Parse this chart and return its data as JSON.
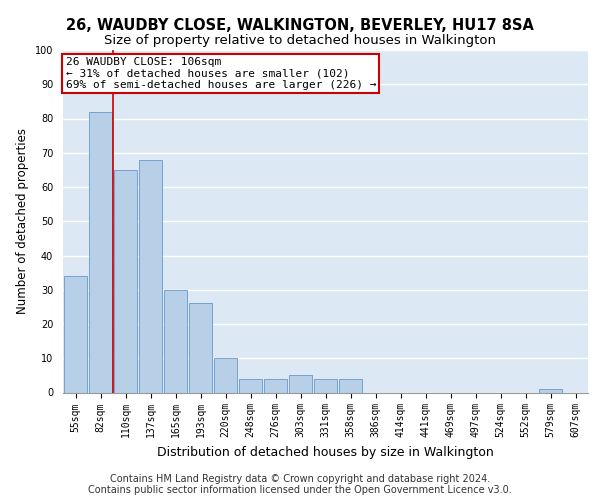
{
  "title1": "26, WAUDBY CLOSE, WALKINGTON, BEVERLEY, HU17 8SA",
  "title2": "Size of property relative to detached houses in Walkington",
  "xlabel": "Distribution of detached houses by size in Walkington",
  "ylabel": "Number of detached properties",
  "categories": [
    "55sqm",
    "82sqm",
    "110sqm",
    "137sqm",
    "165sqm",
    "193sqm",
    "220sqm",
    "248sqm",
    "276sqm",
    "303sqm",
    "331sqm",
    "358sqm",
    "386sqm",
    "414sqm",
    "441sqm",
    "469sqm",
    "497sqm",
    "524sqm",
    "552sqm",
    "579sqm",
    "607sqm"
  ],
  "values": [
    34,
    82,
    65,
    68,
    30,
    26,
    10,
    4,
    4,
    5,
    4,
    4,
    0,
    0,
    0,
    0,
    0,
    0,
    0,
    1,
    0
  ],
  "bar_color": "#b8cfe8",
  "bar_edge_color": "#6699cc",
  "bar_edge_width": 0.6,
  "vline_x_index": 2,
  "vline_color": "#cc0000",
  "annotation_text": "26 WAUDBY CLOSE: 106sqm\n← 31% of detached houses are smaller (102)\n69% of semi-detached houses are larger (226) →",
  "annotation_box_color": "#ffffff",
  "annotation_box_edge": "#cc0000",
  "ylim": [
    0,
    100
  ],
  "yticks": [
    0,
    10,
    20,
    30,
    40,
    50,
    60,
    70,
    80,
    90,
    100
  ],
  "background_color": "#dce9f5",
  "grid_color": "#ffffff",
  "footer1": "Contains HM Land Registry data © Crown copyright and database right 2024.",
  "footer2": "Contains public sector information licensed under the Open Government Licence v3.0.",
  "title1_fontsize": 10.5,
  "title2_fontsize": 9.5,
  "tick_fontsize": 7,
  "ylabel_fontsize": 8.5,
  "xlabel_fontsize": 9,
  "footer_fontsize": 7,
  "annotation_fontsize": 8
}
